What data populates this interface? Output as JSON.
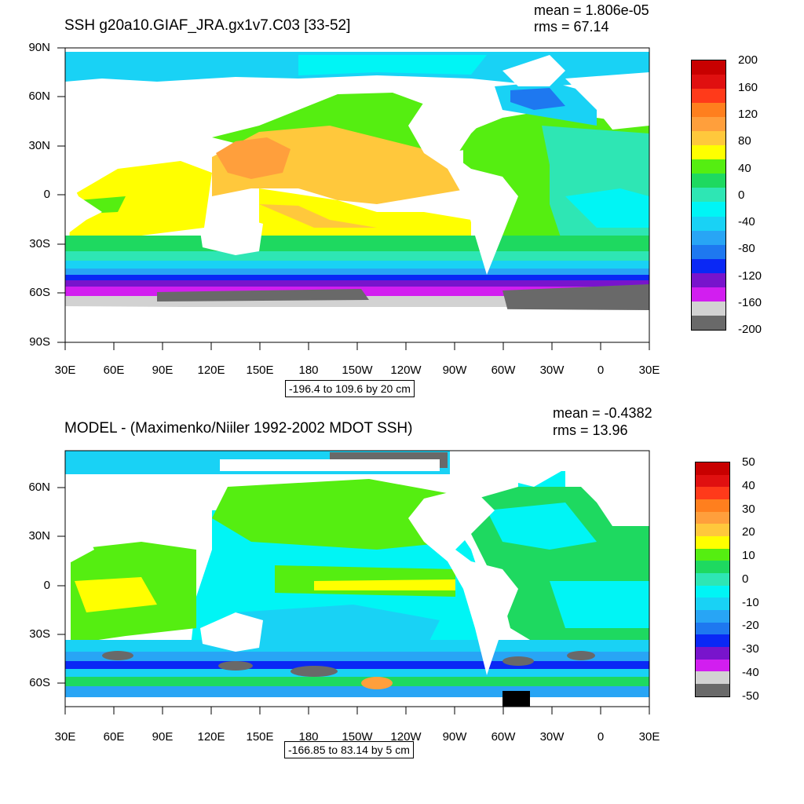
{
  "panels": [
    {
      "id": "top",
      "title": "SSH g20a10.GIAF_JRA.gx1v7.C03 [33-52]",
      "mean": "mean = 1.806e-05",
      "rms": "rms = 67.14",
      "lon_labels": [
        "30E",
        "60E",
        "90E",
        "120E",
        "150E",
        "180",
        "150W",
        "120W",
        "90W",
        "60W",
        "30W",
        "0",
        "30E"
      ],
      "lat_labels": [
        "90N",
        "60N",
        "30N",
        "0",
        "30S",
        "60S",
        "90S"
      ],
      "contour_info": "-196.4 to 109.6 by 20 cm",
      "colorbar": {
        "labels": [
          "200",
          "160",
          "120",
          "80",
          "40",
          "0",
          "-40",
          "-80",
          "-120",
          "-160",
          "-200"
        ],
        "colors": [
          "#c80000",
          "#e01010",
          "#ff3a1a",
          "#ff7f1e",
          "#ff9f3c",
          "#ffc83c",
          "#ffff00",
          "#55ee11",
          "#1ed960",
          "#2ee6b4",
          "#00f5f5",
          "#19d2f5",
          "#28a5f5",
          "#1e78f0",
          "#0a28f5",
          "#7814cc",
          "#d21ef0",
          "#d2d2d2",
          "#696969"
        ]
      }
    },
    {
      "id": "bottom",
      "title": "MODEL - (Maximenko/Niiler 1992-2002 MDOT SSH)",
      "mean": "mean = -0.4382",
      "rms": "rms = 13.96",
      "lon_labels": [
        "30E",
        "60E",
        "90E",
        "120E",
        "150E",
        "180",
        "150W",
        "120W",
        "90W",
        "60W",
        "30W",
        "0",
        "30E"
      ],
      "lat_labels": [
        "60N",
        "30N",
        "0",
        "30S",
        "60S"
      ],
      "contour_info": "-166.85 to 83.14 by 5 cm",
      "colorbar": {
        "labels": [
          "50",
          "40",
          "30",
          "20",
          "10",
          "0",
          "-10",
          "-20",
          "-30",
          "-40",
          "-50"
        ],
        "colors": [
          "#c80000",
          "#e01010",
          "#ff3a1a",
          "#ff7f1e",
          "#ff9f3c",
          "#ffc83c",
          "#ffff00",
          "#55ee11",
          "#1ed960",
          "#2ee6b4",
          "#00f5f5",
          "#19d2f5",
          "#28a5f5",
          "#1e78f0",
          "#0a28f5",
          "#7814cc",
          "#d21ef0",
          "#d2d2d2",
          "#696969"
        ]
      }
    }
  ]
}
